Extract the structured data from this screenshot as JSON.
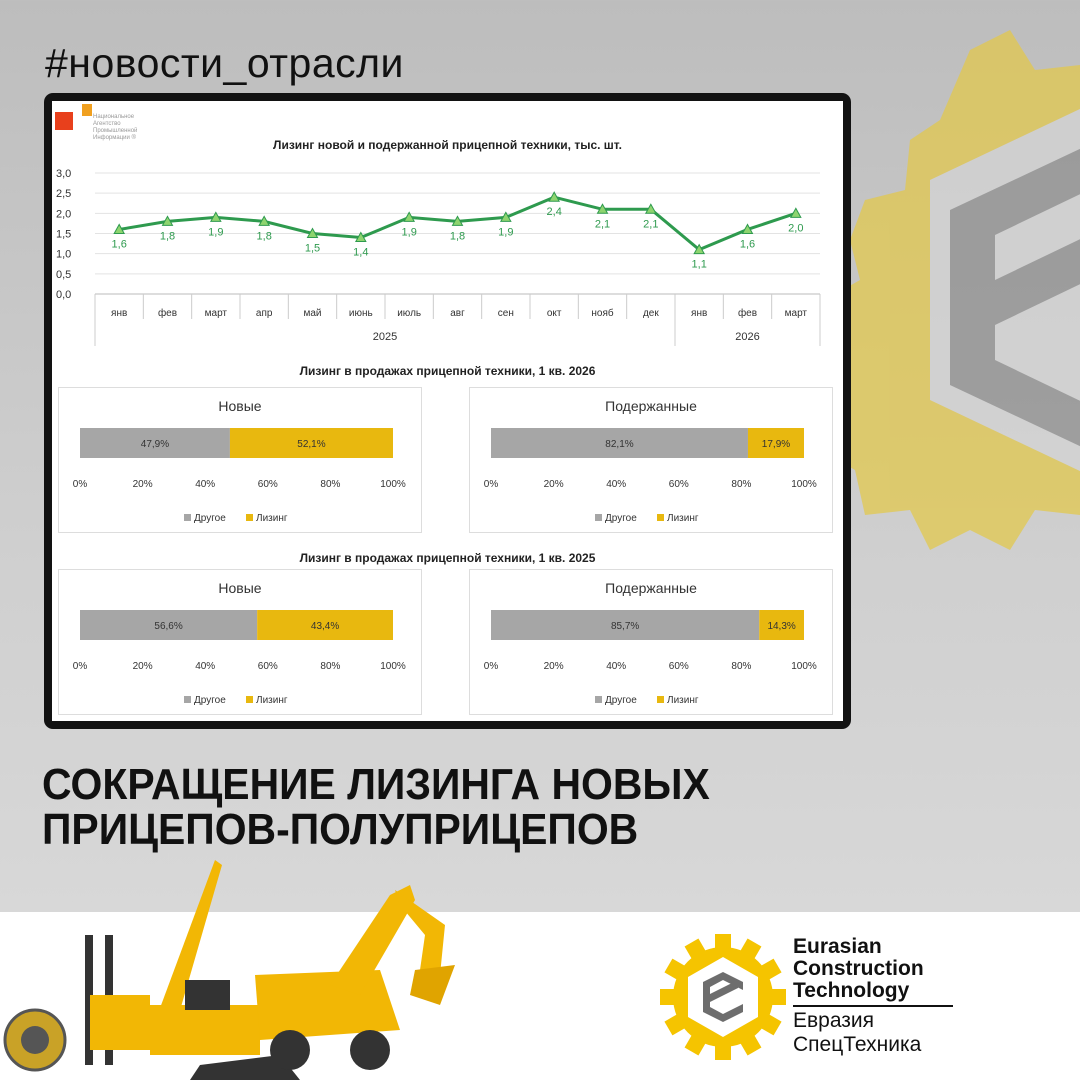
{
  "post": {
    "hashtag": "#новости_отрасли",
    "headline_line1": "СОКРАЩЕНИЕ ЛИЗИНГА НОВЫХ",
    "headline_line2": "ПРИЦЕПОВ-ПОЛУПРИЦЕПОВ"
  },
  "source_logo": {
    "text": "Национальное Агентство Промышленной Информации ®"
  },
  "brand": {
    "en_line1": "Eurasian",
    "en_line2": "Construction",
    "en_line3": "Technology",
    "ru_line1": "Евразия",
    "ru_line2": "СпецТехника",
    "colors": {
      "yellow": "#f5c400",
      "grey": "#6d6d6d"
    }
  },
  "chart_data": [
    {
      "type": "line",
      "title": "Лизинг новой и подержанной прицепной техники, тыс. шт.",
      "categories": [
        "янв",
        "фев",
        "март",
        "апр",
        "май",
        "июнь",
        "июль",
        "авг",
        "сен",
        "окт",
        "нояб",
        "дек",
        "янв",
        "фев",
        "март"
      ],
      "groups": [
        {
          "label": "2025",
          "count": 12
        },
        {
          "label": "2026",
          "count": 3
        }
      ],
      "values": [
        1.6,
        1.8,
        1.9,
        1.8,
        1.5,
        1.4,
        1.9,
        1.8,
        1.9,
        2.4,
        2.1,
        2.1,
        1.1,
        1.6,
        2.0
      ],
      "data_labels": [
        "1,6",
        "1,8",
        "1,9",
        "1,8",
        "1,5",
        "1,4",
        "1,9",
        "1,8",
        "1,9",
        "2,4",
        "2,1",
        "2,1",
        "1,1",
        "1,6",
        "2,0"
      ],
      "ylim": [
        0,
        3
      ],
      "yticks": [
        "0,0",
        "0,5",
        "1,0",
        "1,5",
        "2,0",
        "2,5",
        "3,0"
      ],
      "grid": true,
      "color": "#2e9a4e",
      "marker": "triangle"
    },
    {
      "type": "bar",
      "stacked": "100%",
      "title": "Лизинг в продажах прицепной техники, 1 кв. 2026",
      "panels": [
        {
          "title": "Новые",
          "series": [
            {
              "name": "Другое",
              "value": 47.9,
              "label": "47,9%"
            },
            {
              "name": "Лизинг",
              "value": 52.1,
              "label": "52,1%"
            }
          ]
        },
        {
          "title": "Подержанные",
          "series": [
            {
              "name": "Другое",
              "value": 82.1,
              "label": "82,1%"
            },
            {
              "name": "Лизинг",
              "value": 17.9,
              "label": "17,9%"
            }
          ]
        }
      ],
      "xticks": [
        "0%",
        "20%",
        "40%",
        "60%",
        "80%",
        "100%"
      ],
      "legend": [
        "Другое",
        "Лизинг"
      ],
      "legend_position": "bottom",
      "colors": {
        "Другое": "#a6a6a6",
        "Лизинг": "#e8b80f"
      }
    },
    {
      "type": "bar",
      "stacked": "100%",
      "title": "Лизинг в продажах прицепной техники, 1 кв. 2025",
      "panels": [
        {
          "title": "Новые",
          "series": [
            {
              "name": "Другое",
              "value": 56.6,
              "label": "56,6%"
            },
            {
              "name": "Лизинг",
              "value": 43.4,
              "label": "43,4%"
            }
          ]
        },
        {
          "title": "Подержанные",
          "series": [
            {
              "name": "Другое",
              "value": 85.7,
              "label": "85,7%"
            },
            {
              "name": "Лизинг",
              "value": 14.3,
              "label": "14,3%"
            }
          ]
        }
      ],
      "xticks": [
        "0%",
        "20%",
        "40%",
        "60%",
        "80%",
        "100%"
      ],
      "legend": [
        "Другое",
        "Лизинг"
      ],
      "legend_position": "bottom",
      "colors": {
        "Другое": "#a6a6a6",
        "Лизинг": "#e8b80f"
      }
    }
  ]
}
